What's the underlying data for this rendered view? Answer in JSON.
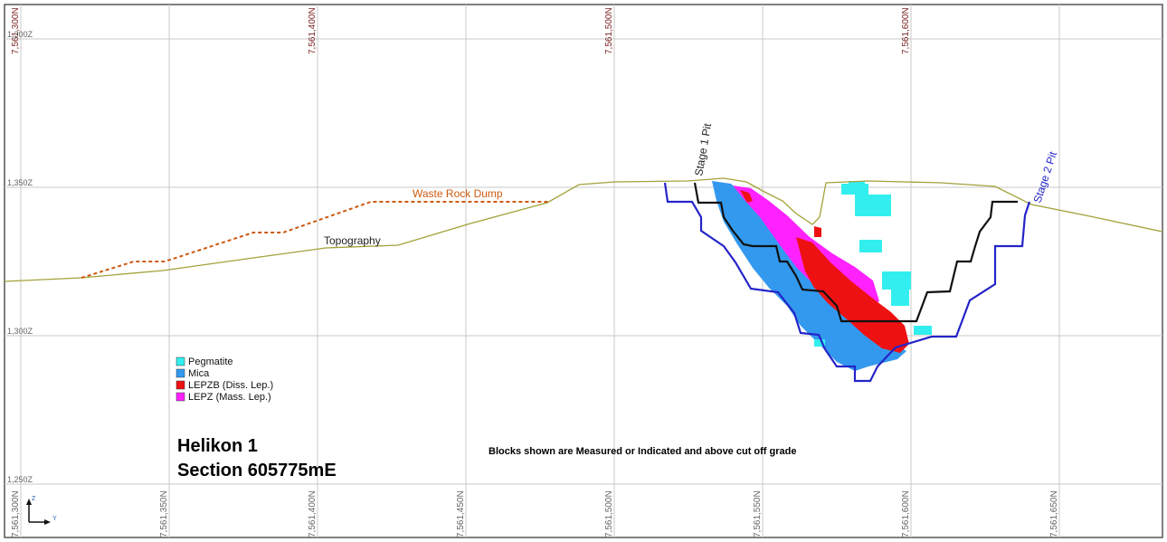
{
  "section": {
    "title_line1": "Helikon 1",
    "title_line2": "Section 605775mE",
    "note": "Blocks shown are Measured or Indicated and above cut off grade"
  },
  "northing_ticks": [
    "7,561,300N",
    "7,561,350N",
    "7,561,400N",
    "7,561,450N",
    "7,561,500N",
    "7,561,550N",
    "7,561,600N",
    "7,561,650N"
  ],
  "top_ticks": [
    "7,561,300N",
    "7,561,400N",
    "7,561,500N",
    "7,561,600N"
  ],
  "elevation_ticks": [
    "1,300Z",
    "1,350Z",
    "1,300Z",
    "1,250Z"
  ],
  "labels": {
    "waste_rock_dump": "Waste Rock Dump",
    "topography": "Topography",
    "stage1_pit": "Stage 1 Pit",
    "stage2_pit": "Stage 2 Pit"
  },
  "legend": [
    {
      "label": "Pegmatite",
      "color": "#33eeee"
    },
    {
      "label": "Mica",
      "color": "#3399ee"
    },
    {
      "label": "LEPZB (Diss. Lep.)",
      "color": "#ee1111"
    },
    {
      "label": "LEPZ (Mass. Lep.)",
      "color": "#ff22ff"
    }
  ],
  "axis_icon": {
    "z": "Z",
    "y": "Y"
  },
  "colors": {
    "topography": "#a2a23a",
    "waste_rock_dump": "#cc5a10",
    "stage1_pit": "#111111",
    "stage2_pit": "#2424c8"
  }
}
